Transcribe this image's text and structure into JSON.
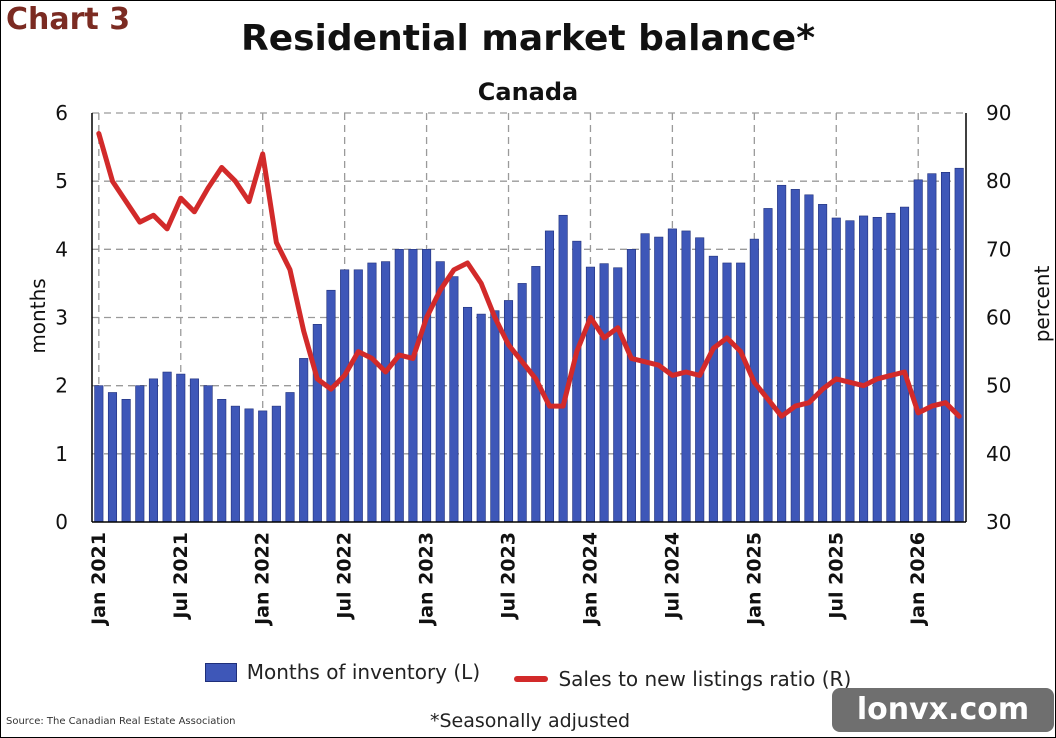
{
  "header": {
    "chart_label": "Chart 3",
    "title": "Residential market balance*",
    "subtitle": "Canada"
  },
  "footer": {
    "source": "Source: The Canadian Real Estate Association",
    "footnote": "*Seasonally adjusted",
    "watermark": "lonvx.com"
  },
  "colors": {
    "bar_fill": "#3e57b8",
    "bar_edge": "#1f2f7a",
    "line": "#d22a2a",
    "grid": "#9a9a9a",
    "chart_label": "#7b2b22"
  },
  "chart_data": {
    "type": "bar",
    "title": "Residential market balance*",
    "subtitle": "Canada",
    "ylabel": "months",
    "ylabel_right": "percent",
    "ylim": [
      0,
      6
    ],
    "ylim_right": [
      30,
      90
    ],
    "yticks": [
      0,
      1,
      2,
      3,
      4,
      5,
      6
    ],
    "yticks_right": [
      30,
      40,
      50,
      60,
      70,
      80,
      90
    ],
    "grid": true,
    "legend_position": "bottom",
    "x_tick_labels": [
      {
        "index": 0,
        "label": "Jan 2021"
      },
      {
        "index": 6,
        "label": "Jul 2021"
      },
      {
        "index": 12,
        "label": "Jan 2022"
      },
      {
        "index": 18,
        "label": "Jul 2022"
      },
      {
        "index": 24,
        "label": "Jan 2023"
      },
      {
        "index": 30,
        "label": "Jul 2023"
      },
      {
        "index": 36,
        "label": "Jan 2024"
      },
      {
        "index": 42,
        "label": "Jul 2024"
      },
      {
        "index": 48,
        "label": "Jan 2025"
      },
      {
        "index": 54,
        "label": "Jul 2025"
      },
      {
        "index": 60,
        "label": "Jan 2026"
      }
    ],
    "series": [
      {
        "name": "Months of inventory (L)",
        "type": "bar",
        "axis": "left",
        "values": [
          2.0,
          1.9,
          1.8,
          2.0,
          2.1,
          2.2,
          2.17,
          2.1,
          2.0,
          1.8,
          1.7,
          1.66,
          1.63,
          1.7,
          1.9,
          2.4,
          2.9,
          3.4,
          3.7,
          3.7,
          3.8,
          3.82,
          4.0,
          4.0,
          4.0,
          3.82,
          3.6,
          3.15,
          3.05,
          3.1,
          3.25,
          3.5,
          3.75,
          4.27,
          4.5,
          4.12,
          3.74,
          3.79,
          3.73,
          4.0,
          4.23,
          4.18,
          4.3,
          4.27,
          4.17,
          3.9,
          3.8,
          3.8,
          4.15,
          4.6,
          4.94,
          4.88,
          4.8,
          4.66,
          4.46,
          4.42,
          4.49,
          4.47,
          4.53,
          4.62,
          5.02,
          5.11,
          5.13,
          5.19
        ]
      },
      {
        "name": "Sales to new listings ratio (R)",
        "type": "line",
        "axis": "right",
        "values": [
          87,
          80,
          77,
          74,
          75,
          73,
          77.5,
          75.5,
          79,
          82,
          80,
          77,
          84,
          71,
          67,
          58,
          51,
          49.5,
          51.5,
          55,
          54,
          52,
          54.5,
          54,
          60,
          64,
          67,
          68,
          65,
          60,
          56,
          53.5,
          51,
          47,
          47,
          55,
          60,
          57,
          58.5,
          54,
          53.5,
          53,
          51.5,
          52,
          51.5,
          55.5,
          57,
          55,
          50.5,
          48,
          45.5,
          47,
          47.5,
          49.5,
          51,
          50.5,
          50,
          51,
          51.5,
          52,
          46,
          47,
          47.5,
          45.5
        ]
      }
    ]
  }
}
